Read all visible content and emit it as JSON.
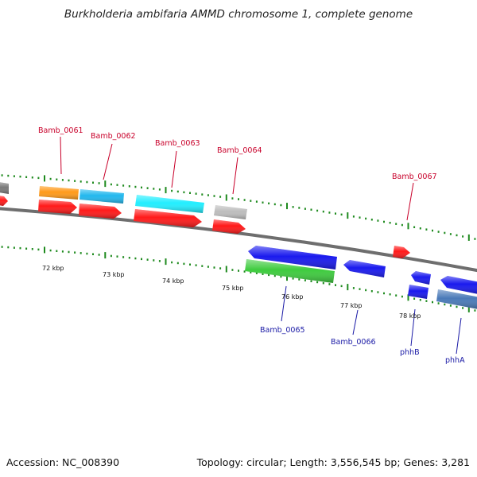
{
  "title": "Burkholderia ambifaria AMMD chromosome 1, complete genome",
  "footer": {
    "accession_label": "Accession:",
    "accession": "NC_008390",
    "topology_label": "Topology:",
    "topology": "circular",
    "length_label": "Length:",
    "length": "3,556,545 bp",
    "genes_label": "Genes:",
    "genes": "3,281"
  },
  "colors": {
    "backbone": "#8a8a8a",
    "tick": "#1e8a1e",
    "label_top": "#c8002a",
    "label_bottom": "#1a1aa6"
  },
  "scale_labels": [
    "72 kbp",
    "73 kbp",
    "74 kbp",
    "75 kbp",
    "76 kbp",
    "77 kbp",
    "78 kbp"
  ],
  "gene_labels": {
    "top": [
      "Bamb_0061",
      "Bamb_0062",
      "Bamb_0063",
      "Bamb_0064",
      "Bamb_0067"
    ],
    "bottom": [
      "Bamb_0065",
      "Bamb_0066",
      "phhB",
      "phhA"
    ]
  },
  "features": [
    {
      "name": "gene-gray-left",
      "color": "#7a7a7a",
      "strand": "+"
    },
    {
      "name": "gene-red-left",
      "color": "#ff1a1a",
      "strand": "+"
    },
    {
      "name": "Bamb_0061",
      "color": "#ff9a1a",
      "strand": "+"
    },
    {
      "name": "Bamb_0061-red",
      "color": "#ff1a1a",
      "strand": "+"
    },
    {
      "name": "Bamb_0062",
      "color": "#22b8ee",
      "strand": "+"
    },
    {
      "name": "Bamb_0062-red",
      "color": "#ff1a1a",
      "strand": "+"
    },
    {
      "name": "Bamb_0063",
      "color": "#22eeff",
      "strand": "+"
    },
    {
      "name": "Bamb_0063-red",
      "color": "#ff1a1a",
      "strand": "+"
    },
    {
      "name": "Bamb_0064",
      "color": "#bdbdbd",
      "strand": "+"
    },
    {
      "name": "Bamb_0064-red",
      "color": "#ff1a1a",
      "strand": "+"
    },
    {
      "name": "Bamb_0067",
      "color": "#ff1a1a",
      "strand": "+"
    },
    {
      "name": "Bamb_0065",
      "color": "#1a1aee",
      "strand": "-"
    },
    {
      "name": "Bamb_0065-green",
      "color": "#3ecb3e",
      "strand": "-"
    },
    {
      "name": "Bamb_0066",
      "color": "#1a1aee",
      "strand": "-"
    },
    {
      "name": "phhB",
      "color": "#1a1aee",
      "strand": "-"
    },
    {
      "name": "phhB-2",
      "color": "#1a1aee",
      "strand": "-"
    },
    {
      "name": "phhA",
      "color": "#1a1aee",
      "strand": "-"
    },
    {
      "name": "phhA-steel",
      "color": "#4a7ab8",
      "strand": "-"
    }
  ]
}
